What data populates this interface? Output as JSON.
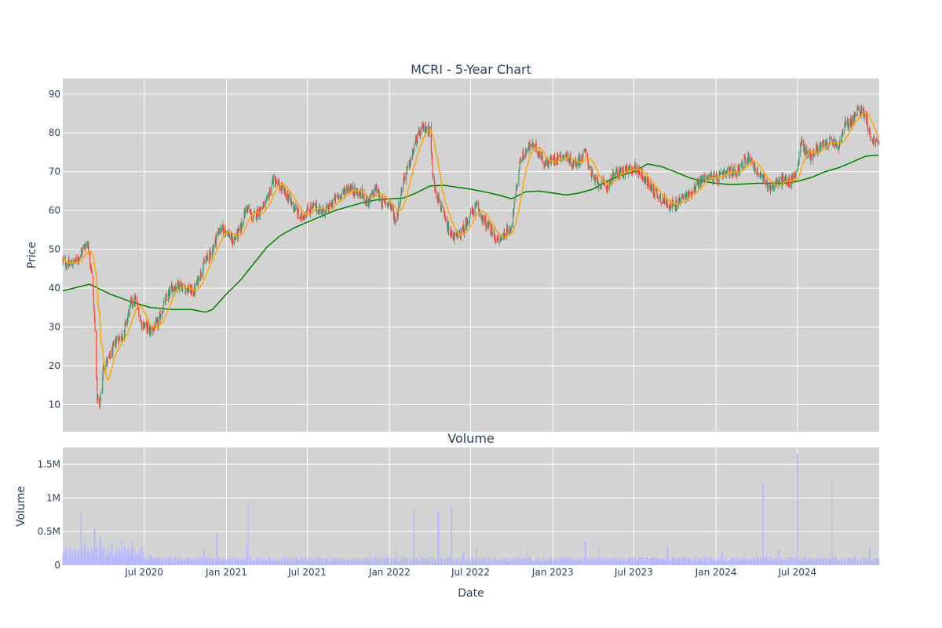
{
  "chart_data": [
    {
      "type": "candlestick",
      "title": "MCRI - 5-Year Chart",
      "xlabel": "",
      "ylabel": "Price",
      "xlim": [
        "2020-01-01",
        "2024-12-31"
      ],
      "ylim": [
        3,
        94
      ],
      "y_ticks": [
        10,
        20,
        30,
        40,
        50,
        60,
        70,
        80,
        90
      ],
      "grid": true,
      "colors": {
        "background": "#d3d3d3",
        "grid": "#ffffff",
        "increasing": "#3d9970",
        "decreasing": "#ff4136",
        "ma_short": "#ffa500",
        "ma_long": "#008000"
      },
      "price_anchors": [
        [
          "2020-01-02",
          47
        ],
        [
          "2020-01-15",
          46
        ],
        [
          "2020-02-01",
          47
        ],
        [
          "2020-02-15",
          50
        ],
        [
          "2020-02-25",
          52
        ],
        [
          "2020-03-05",
          45
        ],
        [
          "2020-03-12",
          32
        ],
        [
          "2020-03-18",
          12
        ],
        [
          "2020-03-23",
          9
        ],
        [
          "2020-04-01",
          20
        ],
        [
          "2020-04-15",
          22
        ],
        [
          "2020-05-01",
          27
        ],
        [
          "2020-05-15",
          28
        ],
        [
          "2020-06-01",
          36
        ],
        [
          "2020-06-12",
          37
        ],
        [
          "2020-06-25",
          31
        ],
        [
          "2020-07-15",
          29
        ],
        [
          "2020-08-01",
          31
        ],
        [
          "2020-08-15",
          36
        ],
        [
          "2020-09-01",
          40
        ],
        [
          "2020-09-15",
          41
        ],
        [
          "2020-10-01",
          40
        ],
        [
          "2020-10-20",
          39
        ],
        [
          "2020-11-01",
          43
        ],
        [
          "2020-11-15",
          47
        ],
        [
          "2020-12-01",
          50
        ],
        [
          "2020-12-15",
          55
        ],
        [
          "2021-01-01",
          55
        ],
        [
          "2021-01-15",
          52
        ],
        [
          "2021-02-01",
          55
        ],
        [
          "2021-02-15",
          61
        ],
        [
          "2021-03-01",
          58
        ],
        [
          "2021-03-15",
          60
        ],
        [
          "2021-04-01",
          62
        ],
        [
          "2021-04-15",
          68
        ],
        [
          "2021-05-01",
          66
        ],
        [
          "2021-05-15",
          64
        ],
        [
          "2021-06-01",
          61
        ],
        [
          "2021-06-15",
          58
        ],
        [
          "2021-07-01",
          60
        ],
        [
          "2021-07-15",
          61
        ],
        [
          "2021-08-01",
          60
        ],
        [
          "2021-08-15",
          60
        ],
        [
          "2021-09-01",
          63
        ],
        [
          "2021-09-15",
          64
        ],
        [
          "2021-10-01",
          66
        ],
        [
          "2021-10-15",
          65
        ],
        [
          "2021-11-01",
          64
        ],
        [
          "2021-11-15",
          62
        ],
        [
          "2021-12-01",
          66
        ],
        [
          "2021-12-15",
          62
        ],
        [
          "2022-01-01",
          62
        ],
        [
          "2022-01-15",
          57
        ],
        [
          "2022-02-01",
          68
        ],
        [
          "2022-02-15",
          72
        ],
        [
          "2022-03-01",
          78
        ],
        [
          "2022-03-15",
          81
        ],
        [
          "2022-04-01",
          81
        ],
        [
          "2022-04-08",
          68
        ],
        [
          "2022-04-15",
          65
        ],
        [
          "2022-05-01",
          59
        ],
        [
          "2022-05-15",
          54
        ],
        [
          "2022-06-01",
          53
        ],
        [
          "2022-06-15",
          55
        ],
        [
          "2022-07-01",
          59
        ],
        [
          "2022-07-15",
          61
        ],
        [
          "2022-08-01",
          57
        ],
        [
          "2022-08-15",
          55
        ],
        [
          "2022-09-01",
          52
        ],
        [
          "2022-09-15",
          54
        ],
        [
          "2022-10-01",
          56
        ],
        [
          "2022-10-10",
          64
        ],
        [
          "2022-10-20",
          73
        ],
        [
          "2022-11-01",
          75
        ],
        [
          "2022-11-15",
          77
        ],
        [
          "2022-12-01",
          75
        ],
        [
          "2022-12-15",
          72
        ],
        [
          "2023-01-01",
          73
        ],
        [
          "2023-01-15",
          74
        ],
        [
          "2023-02-01",
          74
        ],
        [
          "2023-02-15",
          72
        ],
        [
          "2023-03-01",
          73
        ],
        [
          "2023-03-15",
          75
        ],
        [
          "2023-04-01",
          68
        ],
        [
          "2023-04-15",
          67
        ],
        [
          "2023-05-01",
          66
        ],
        [
          "2023-05-15",
          69
        ],
        [
          "2023-06-01",
          70
        ],
        [
          "2023-06-15",
          70
        ],
        [
          "2023-07-01",
          71
        ],
        [
          "2023-07-15",
          70
        ],
        [
          "2023-08-01",
          67
        ],
        [
          "2023-08-15",
          65
        ],
        [
          "2023-09-01",
          63
        ],
        [
          "2023-09-15",
          62
        ],
        [
          "2023-10-01",
          61
        ],
        [
          "2023-10-15",
          63
        ],
        [
          "2023-11-01",
          64
        ],
        [
          "2023-11-15",
          66
        ],
        [
          "2023-12-01",
          68
        ],
        [
          "2023-12-15",
          69
        ],
        [
          "2024-01-01",
          68
        ],
        [
          "2024-01-15",
          69
        ],
        [
          "2024-02-01",
          70
        ],
        [
          "2024-02-15",
          70
        ],
        [
          "2024-03-01",
          72
        ],
        [
          "2024-03-15",
          74
        ],
        [
          "2024-04-01",
          70
        ],
        [
          "2024-04-15",
          68
        ],
        [
          "2024-05-01",
          66
        ],
        [
          "2024-05-15",
          67
        ],
        [
          "2024-06-01",
          68
        ],
        [
          "2024-06-15",
          67
        ],
        [
          "2024-07-01",
          71
        ],
        [
          "2024-07-10",
          78
        ],
        [
          "2024-07-20",
          75
        ],
        [
          "2024-08-01",
          74
        ],
        [
          "2024-08-15",
          76
        ],
        [
          "2024-09-01",
          77
        ],
        [
          "2024-09-15",
          78
        ],
        [
          "2024-10-01",
          76
        ],
        [
          "2024-10-15",
          82
        ],
        [
          "2024-11-01",
          83
        ],
        [
          "2024-11-15",
          86
        ],
        [
          "2024-12-01",
          85
        ],
        [
          "2024-12-10",
          79
        ],
        [
          "2024-12-31",
          77
        ]
      ],
      "ma_long_anchors": [
        [
          "2020-01-01",
          39.3
        ],
        [
          "2020-03-01",
          41
        ],
        [
          "2020-04-15",
          38.5
        ],
        [
          "2020-06-01",
          36.5
        ],
        [
          "2020-07-15",
          35
        ],
        [
          "2020-09-01",
          34.5
        ],
        [
          "2020-10-15",
          34.5
        ],
        [
          "2020-11-15",
          33.8
        ],
        [
          "2020-12-01",
          34.5
        ],
        [
          "2021-01-01",
          38.5
        ],
        [
          "2021-02-01",
          42
        ],
        [
          "2021-03-01",
          46
        ],
        [
          "2021-04-01",
          50.5
        ],
        [
          "2021-05-01",
          53.5
        ],
        [
          "2021-06-01",
          55.5
        ],
        [
          "2021-07-01",
          57
        ],
        [
          "2021-08-01",
          58.5
        ],
        [
          "2021-09-01",
          60
        ],
        [
          "2021-10-01",
          61
        ],
        [
          "2021-11-01",
          62
        ],
        [
          "2021-12-01",
          62.7
        ],
        [
          "2022-01-01",
          63
        ],
        [
          "2022-02-01",
          63.2
        ],
        [
          "2022-03-01",
          64.5
        ],
        [
          "2022-04-01",
          66.3
        ],
        [
          "2022-05-01",
          66.5
        ],
        [
          "2022-06-01",
          66
        ],
        [
          "2022-07-01",
          65.5
        ],
        [
          "2022-08-01",
          64.8
        ],
        [
          "2022-09-01",
          64
        ],
        [
          "2022-10-01",
          63
        ],
        [
          "2022-11-01",
          64.8
        ],
        [
          "2022-12-01",
          65
        ],
        [
          "2023-01-01",
          64.5
        ],
        [
          "2023-02-01",
          64
        ],
        [
          "2023-03-01",
          64.5
        ],
        [
          "2023-04-01",
          65.5
        ],
        [
          "2023-05-01",
          67.5
        ],
        [
          "2023-06-01",
          69
        ],
        [
          "2023-07-01",
          70
        ],
        [
          "2023-08-01",
          72
        ],
        [
          "2023-09-01",
          71.3
        ],
        [
          "2023-10-01",
          70
        ],
        [
          "2023-11-01",
          68.5
        ],
        [
          "2023-12-01",
          67.5
        ],
        [
          "2024-01-01",
          67
        ],
        [
          "2024-02-01",
          66.7
        ],
        [
          "2024-03-01",
          66.8
        ],
        [
          "2024-04-01",
          67
        ],
        [
          "2024-05-01",
          67
        ],
        [
          "2024-06-01",
          67
        ],
        [
          "2024-07-01",
          67.5
        ],
        [
          "2024-08-01",
          68.5
        ],
        [
          "2024-09-01",
          70
        ],
        [
          "2024-10-01",
          71
        ],
        [
          "2024-11-01",
          72.5
        ],
        [
          "2024-12-01",
          74
        ],
        [
          "2024-12-31",
          74.3
        ]
      ]
    },
    {
      "type": "bar",
      "title": "Volume",
      "xlabel": "Date",
      "ylabel": "Volume",
      "xlim": [
        "2020-01-01",
        "2024-12-31"
      ],
      "ylim": [
        0,
        1750000
      ],
      "y_ticks": [
        0,
        500000,
        1000000,
        1500000
      ],
      "y_tick_labels": [
        "0",
        "0.5M",
        "1M",
        "1.5M"
      ],
      "x_ticks": [
        "2020-07-01",
        "2021-01-01",
        "2021-07-01",
        "2022-01-01",
        "2022-07-01",
        "2023-01-01",
        "2023-07-01",
        "2024-01-01",
        "2024-07-01"
      ],
      "x_tick_labels": [
        "Jul 2020",
        "Jan 2021",
        "Jul 2021",
        "Jan 2022",
        "Jul 2022",
        "Jan 2023",
        "Jul 2023",
        "Jan 2024",
        "Jul 2024"
      ],
      "grid": true,
      "colors": {
        "background": "#d3d3d3",
        "grid": "#ffffff",
        "bar": "#b4b4ff"
      },
      "volume_spikes": [
        [
          "2020-02-10",
          780000
        ],
        [
          "2020-02-20",
          320000
        ],
        [
          "2020-03-12",
          550000
        ],
        [
          "2020-03-25",
          420000
        ],
        [
          "2020-04-20",
          300000
        ],
        [
          "2020-05-10",
          380000
        ],
        [
          "2020-06-05",
          350000
        ],
        [
          "2020-07-15",
          150000
        ],
        [
          "2020-11-12",
          220000
        ],
        [
          "2020-12-10",
          480000
        ],
        [
          "2021-02-20",
          950000
        ],
        [
          "2021-02-15",
          300000
        ],
        [
          "2022-01-15",
          250000
        ],
        [
          "2022-02-25",
          830000
        ],
        [
          "2022-04-20",
          800000
        ],
        [
          "2022-05-20",
          870000
        ],
        [
          "2022-06-15",
          200000
        ],
        [
          "2022-07-15",
          250000
        ],
        [
          "2022-11-05",
          250000
        ],
        [
          "2023-03-15",
          350000
        ],
        [
          "2023-04-15",
          300000
        ],
        [
          "2023-09-15",
          270000
        ],
        [
          "2024-01-15",
          200000
        ],
        [
          "2024-04-15",
          1200000
        ],
        [
          "2024-05-20",
          220000
        ],
        [
          "2024-07-01",
          1650000
        ],
        [
          "2024-09-15",
          1300000
        ],
        [
          "2024-12-10",
          250000
        ]
      ]
    }
  ]
}
